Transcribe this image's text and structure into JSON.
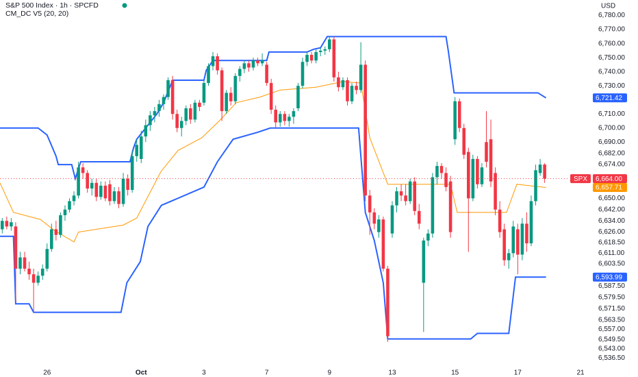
{
  "chart_data": {
    "type": "candlestick",
    "title": "S&P 500 Index · 1h · SPCFD",
    "subtitle": "CM_DC V5 (20, 20)",
    "currency": "USD",
    "symbol_tag": "SPX",
    "up_color": "#089981",
    "down_color": "#f23645",
    "open": [
      6628,
      6634,
      6630,
      6630,
      6600,
      6608,
      6600,
      6596,
      6590,
      6595,
      6600,
      6614,
      6628,
      6624,
      6638,
      6642,
      6648,
      6652,
      6672,
      6668,
      6657,
      6661,
      6651,
      6659,
      6660,
      6648,
      6655,
      6646,
      6664,
      6656,
      6680,
      6678,
      6694,
      6702,
      6709,
      6712,
      6717,
      6722,
      6734,
      6710,
      6700,
      6705,
      6714,
      6706,
      6718,
      6718,
      6732,
      6744,
      6751,
      6741,
      6712,
      6725,
      6719,
      6737,
      6742,
      6746,
      6743,
      6748,
      6746,
      6745,
      6732,
      6713,
      6704,
      6710,
      6705,
      6708,
      6714,
      6730,
      6747,
      6752,
      6748,
      6754,
      6755,
      6756,
      6763,
      6736,
      6729,
      6734,
      6719,
      6730,
      6727,
      6745,
      6652,
      6640,
      6626,
      6635,
      6600,
      6625,
      6645,
      6655,
      6652,
      6648,
      6662,
      6641,
      6590,
      6620,
      6625,
      6665,
      6673,
      6668,
      6662,
      6692,
      6719,
      6700,
      6683,
      6650,
      6678,
      6660,
      6690,
      6692,
      6668,
      6642,
      6628,
      6606,
      6611,
      6628,
      6610,
      6632,
      6618,
      6648,
      6668,
      6674
    ],
    "high": [
      6636,
      6637,
      6636,
      6633,
      6612,
      6612,
      6605,
      6600,
      6598,
      6603,
      6618,
      6632,
      6634,
      6640,
      6645,
      6650,
      6655,
      6676,
      6675,
      6670,
      6664,
      6664,
      6662,
      6662,
      6663,
      6658,
      6658,
      6668,
      6667,
      6684,
      6692,
      6698,
      6706,
      6712,
      6715,
      6720,
      6724,
      6736,
      6737,
      6713,
      6708,
      6716,
      6717,
      6720,
      6720,
      6734,
      6746,
      6754,
      6753,
      6743,
      6727,
      6729,
      6739,
      6744,
      6748,
      6748,
      6750,
      6750,
      6753,
      6747,
      6735,
      6716,
      6712,
      6712,
      6710,
      6714,
      6732,
      6750,
      6754,
      6754,
      6756,
      6757,
      6758,
      6765,
      6765,
      6740,
      6736,
      6736,
      6732,
      6733,
      6761,
      6748,
      6656,
      6643,
      6638,
      6637,
      6602,
      6648,
      6658,
      6660,
      6660,
      6664,
      6665,
      6646,
      6622,
      6628,
      6668,
      6676,
      6675,
      6672,
      6666,
      6722,
      6721,
      6703,
      6686,
      6681,
      6680,
      6675,
      6712,
      6706,
      6672,
      6648,
      6632,
      6614,
      6634,
      6632,
      6636,
      6640,
      6652,
      6674,
      6678,
      6675
    ],
    "low": [
      6625,
      6628,
      6627,
      6576,
      6596,
      6598,
      6592,
      6569,
      6588,
      6592,
      6598,
      6612,
      6620,
      6622,
      6634,
      6640,
      6645,
      6650,
      6664,
      6654,
      6652,
      6648,
      6649,
      6648,
      6645,
      6646,
      6643,
      6644,
      6652,
      6654,
      6676,
      6675,
      6690,
      6698,
      6704,
      6708,
      6713,
      6720,
      6706,
      6697,
      6694,
      6702,
      6703,
      6704,
      6712,
      6716,
      6730,
      6741,
      6738,
      6705,
      6710,
      6716,
      6717,
      6733,
      6739,
      6740,
      6741,
      6744,
      6744,
      6730,
      6710,
      6700,
      6701,
      6702,
      6701,
      6703,
      6712,
      6728,
      6744,
      6746,
      6746,
      6751,
      6752,
      6754,
      6733,
      6726,
      6727,
      6716,
      6717,
      6724,
      6725,
      6648,
      6624,
      6628,
      6622,
      6598,
      6548,
      6622,
      6640,
      6648,
      6645,
      6646,
      6638,
      6628,
      6555,
      6616,
      6622,
      6660,
      6664,
      6655,
      6622,
      6688,
      6697,
      6678,
      6612,
      6648,
      6657,
      6658,
      6672,
      6658,
      6638,
      6622,
      6602,
      6600,
      6608,
      6596,
      6606,
      6612,
      6616,
      6645,
      6666,
      6661
    ],
    "close": [
      6634,
      6630,
      6633,
      6600,
      6608,
      6600,
      6596,
      6590,
      6595,
      6600,
      6614,
      6628,
      6624,
      6638,
      6642,
      6648,
      6652,
      6672,
      6668,
      6657,
      6661,
      6651,
      6659,
      6650,
      6648,
      6655,
      6646,
      6664,
      6656,
      6680,
      6688,
      6694,
      6702,
      6709,
      6712,
      6717,
      6722,
      6734,
      6710,
      6700,
      6705,
      6714,
      6706,
      6718,
      6715,
      6732,
      6744,
      6751,
      6741,
      6712,
      6725,
      6719,
      6737,
      6742,
      6746,
      6743,
      6748,
      6746,
      6748,
      6732,
      6713,
      6704,
      6710,
      6705,
      6708,
      6712,
      6730,
      6747,
      6752,
      6748,
      6754,
      6755,
      6756,
      6763,
      6736,
      6729,
      6734,
      6719,
      6730,
      6727,
      6745,
      6652,
      6640,
      6632,
      6635,
      6600,
      6552,
      6645,
      6655,
      6652,
      6648,
      6662,
      6641,
      6632,
      6620,
      6625,
      6665,
      6673,
      6668,
      6658,
      6626,
      6719,
      6700,
      6681,
      6650,
      6678,
      6660,
      6672,
      6676,
      6662,
      6642,
      6626,
      6606,
      6611,
      6630,
      6610,
      6632,
      6618,
      6648,
      6670,
      6674,
      6664
    ],
    "series": [
      {
        "color": "#2962ff",
        "x": [
          -0.5,
          8,
          10,
          12,
          12.5,
          15.5,
          16.3,
          17.5,
          28.5,
          29.3,
          30,
          34.5,
          36,
          38,
          45,
          45.5,
          47,
          59,
          59.5,
          68,
          69.5,
          71,
          72.5,
          99,
          99.5,
          100.8,
          119.5,
          121.3
        ],
        "values": [
          6700,
          6700,
          6695,
          6680,
          6674,
          6674,
          6664,
          6676,
          6676,
          6686,
          6692,
          6710,
          6718,
          6734,
          6734,
          6741,
          6748,
          6748,
          6754,
          6754,
          6756,
          6757,
          6765,
          6765,
          6755,
          6725,
          6725,
          6721.42
        ]
      },
      {
        "color": "#ff9800",
        "x": [
          -0.5,
          2.5,
          8.5,
          11.7,
          16,
          17,
          27,
          30,
          35.4,
          39.2,
          44.5,
          48.4,
          52.2,
          57.5,
          62,
          70,
          76,
          80,
          82,
          86,
          100,
          101.5,
          112.5,
          114.8,
          121.3
        ],
        "values": [
          6661,
          6640,
          6635,
          6627,
          6619,
          6626,
          6631,
          6636,
          6669,
          6684,
          6693,
          6705,
          6718,
          6722,
          6727,
          6729,
          6733,
          6732,
          6693,
          6660,
          6660,
          6640,
          6640,
          6660,
          6657.71
        ]
      },
      {
        "color": "#2962ff",
        "x": [
          -0.5,
          2.5,
          3,
          6,
          7,
          26.5,
          27.8,
          30.8,
          32.5,
          35.5,
          45,
          48,
          51.5,
          57,
          59.8,
          79.5,
          81,
          83,
          85,
          86,
          104.5,
          106,
          113,
          114.5,
          121.3
        ],
        "values": [
          6623,
          6623,
          6575,
          6575,
          6569,
          6569,
          6590,
          6605,
          6630,
          6645,
          6658,
          6676,
          6692,
          6697,
          6700,
          6700,
          6640,
          6620,
          6590,
          6550,
          6550,
          6554,
          6554,
          6594,
          6593.99
        ]
      }
    ],
    "price_tags": [
      {
        "value": 6721.42,
        "label": "6,721.42",
        "color": "#2962ff"
      },
      {
        "value": 6664,
        "label": "6,664.00",
        "color": "#f23645"
      },
      {
        "value": 6657.71,
        "label": "6,657.71",
        "color": "#ff9800"
      },
      {
        "value": 6593.99,
        "label": "6,593.99",
        "color": "#2962ff"
      }
    ],
    "xlim": [
      -0.5,
      129
    ],
    "xticks": [
      {
        "value": 10,
        "label": "26"
      },
      {
        "value": 31,
        "label": "Oct"
      },
      {
        "value": 45,
        "label": "3"
      },
      {
        "value": 59,
        "label": "7"
      },
      {
        "value": 73,
        "label": "9"
      },
      {
        "value": 87,
        "label": "13"
      },
      {
        "value": 101,
        "label": "15"
      },
      {
        "value": 115,
        "label": "17"
      },
      {
        "value": 129,
        "label": "21"
      }
    ],
    "ylim": [
      6530,
      6791
    ],
    "yticks": [
      {
        "value": 6780,
        "label": "6,780.00"
      },
      {
        "value": 6770,
        "label": "6,770.00"
      },
      {
        "value": 6760,
        "label": "6,760.00"
      },
      {
        "value": 6750,
        "label": "6,750.00"
      },
      {
        "value": 6740,
        "label": "6,740.00"
      },
      {
        "value": 6730,
        "label": "6,730.00"
      },
      {
        "value": 6710,
        "label": "6,710.00"
      },
      {
        "value": 6700,
        "label": "6,700.00"
      },
      {
        "value": 6690,
        "label": "6,690.00"
      },
      {
        "value": 6682,
        "label": "6,682.00"
      },
      {
        "value": 6674,
        "label": "6,674.00"
      },
      {
        "value": 6650,
        "label": "6,650.00"
      },
      {
        "value": 6642,
        "label": "6,642.00"
      },
      {
        "value": 6634,
        "label": "6,634.00"
      },
      {
        "value": 6626,
        "label": "6,626.00"
      },
      {
        "value": 6618.5,
        "label": "6,618.50"
      },
      {
        "value": 6611,
        "label": "6,611.00"
      },
      {
        "value": 6603.5,
        "label": "6,603.50"
      },
      {
        "value": 6587.5,
        "label": "6,587.50"
      },
      {
        "value": 6579.5,
        "label": "6,579.50"
      },
      {
        "value": 6571.5,
        "label": "6,571.50"
      },
      {
        "value": 6563.5,
        "label": "6,563.50"
      },
      {
        "value": 6557,
        "label": "6,557.00"
      },
      {
        "value": 6549.5,
        "label": "6,549.50"
      },
      {
        "value": 6543,
        "label": "6,543.00"
      },
      {
        "value": 6536.5,
        "label": "6,536.50"
      }
    ],
    "grid": false
  }
}
